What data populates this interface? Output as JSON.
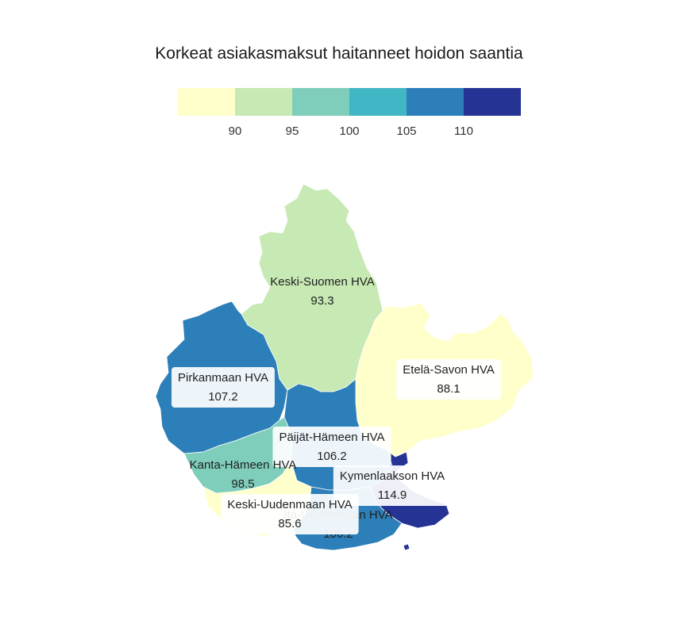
{
  "title": "Korkeat asiakasmaksut haitanneet hoidon saantia",
  "legend": {
    "colors": [
      "#ffffcc",
      "#c7e9b4",
      "#7fcdbb",
      "#41b6c4",
      "#2c7fb8",
      "#253494"
    ],
    "ticks": [
      "90",
      "95",
      "100",
      "105",
      "110"
    ]
  },
  "colors": {
    "keski_suomi": "#c7e9b4",
    "pirkanmaa": "#2c7fb8",
    "etela_savo": "#ffffcc",
    "paijat_hame": "#2c7fb8",
    "kanta_hame": "#7fcdbb",
    "kymenlaakso": "#253494",
    "keski_uusimaa": "#ffffcc",
    "ita_uusimaa": "#2c7fb8",
    "border": "#ffffff"
  },
  "regions": [
    {
      "key": "keski_suomi",
      "name": "Keski-Suomen HVA",
      "value": "93.3"
    },
    {
      "key": "etela_savo",
      "name": "Etelä-Savon HVA",
      "value": "88.1"
    },
    {
      "key": "pirkanmaa",
      "name": "Pirkanmaan HVA",
      "value": "107.2"
    },
    {
      "key": "paijat_hame",
      "name": "Päijät-Hämeen HVA",
      "value": "106.2"
    },
    {
      "key": "kymenlaakso",
      "name": "Kymenlaakson HVA",
      "value": "114.9"
    },
    {
      "key": "kanta_hame",
      "name": "Kanta-Hämeen HVA",
      "value": "98.5"
    },
    {
      "key": "ita_uusimaa",
      "name": "Itä-Uudenmaan HVA",
      "value": "106.2"
    },
    {
      "key": "keski_uusimaa",
      "name": "Keski-Uudenmaan HVA",
      "value": "85.6"
    }
  ]
}
